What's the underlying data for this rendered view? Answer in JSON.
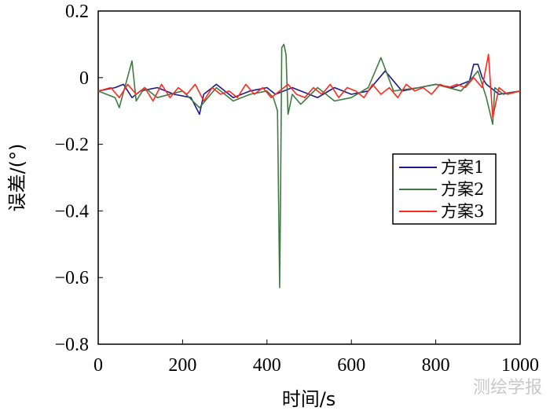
{
  "chart_data": {
    "type": "line",
    "xlabel": "时间/s",
    "ylabel": "误差/(°)",
    "xlim": [
      0,
      1000
    ],
    "ylim": [
      -0.8,
      0.2
    ],
    "xticks": [
      0,
      200,
      400,
      600,
      800,
      1000
    ],
    "yticks": [
      0.2,
      0,
      -0.2,
      -0.4,
      -0.6,
      -0.8
    ],
    "ytick_labels": [
      "0.2",
      "0",
      "−0.2",
      "−0.4",
      "−0.6",
      "−0.8"
    ],
    "grid": false,
    "legend_position": "right",
    "colors": {
      "方案1": "#1f1a8c",
      "方案2": "#3f7a45",
      "方案3": "#ff2a20"
    },
    "series": [
      {
        "name": "方案1",
        "x": [
          0,
          40,
          60,
          80,
          100,
          140,
          180,
          220,
          240,
          250,
          280,
          320,
          360,
          400,
          420,
          440,
          460,
          480,
          520,
          560,
          600,
          640,
          680,
          720,
          760,
          800,
          840,
          880,
          890,
          900,
          910,
          920,
          950,
          1000
        ],
        "y": [
          -0.04,
          -0.03,
          -0.02,
          -0.06,
          -0.04,
          -0.03,
          -0.05,
          -0.06,
          -0.11,
          -0.05,
          -0.02,
          -0.06,
          -0.04,
          -0.03,
          -0.05,
          -0.04,
          -0.03,
          -0.04,
          -0.06,
          -0.03,
          -0.05,
          -0.04,
          0.02,
          -0.04,
          -0.03,
          -0.02,
          -0.03,
          -0.01,
          0.04,
          0.04,
          0.0,
          -0.02,
          -0.05,
          -0.04
        ]
      },
      {
        "name": "方案2",
        "x": [
          0,
          40,
          50,
          80,
          90,
          110,
          140,
          200,
          240,
          280,
          320,
          360,
          400,
          415,
          425,
          430,
          432,
          435,
          440,
          445,
          450,
          460,
          480,
          520,
          560,
          600,
          640,
          670,
          700,
          760,
          800,
          860,
          900,
          920,
          935,
          940,
          960,
          1000
        ],
        "y": [
          -0.04,
          -0.06,
          -0.09,
          0.05,
          -0.07,
          -0.03,
          -0.06,
          -0.04,
          -0.09,
          -0.03,
          -0.07,
          -0.05,
          -0.04,
          -0.06,
          -0.1,
          -0.63,
          -0.37,
          0.09,
          0.1,
          0.07,
          -0.11,
          -0.05,
          -0.08,
          -0.03,
          -0.07,
          -0.06,
          -0.03,
          0.06,
          -0.04,
          -0.03,
          -0.02,
          -0.04,
          0.02,
          -0.06,
          -0.14,
          -0.03,
          -0.05,
          -0.04
        ]
      },
      {
        "name": "方案3",
        "x": [
          0,
          30,
          50,
          70,
          90,
          110,
          130,
          150,
          170,
          190,
          210,
          230,
          250,
          270,
          290,
          310,
          330,
          350,
          370,
          390,
          410,
          430,
          450,
          470,
          490,
          510,
          530,
          550,
          570,
          590,
          610,
          630,
          650,
          670,
          690,
          710,
          730,
          750,
          770,
          790,
          810,
          830,
          850,
          870,
          890,
          910,
          925,
          935,
          950,
          970,
          1000
        ],
        "y": [
          -0.04,
          -0.03,
          -0.06,
          -0.02,
          -0.05,
          -0.03,
          -0.07,
          -0.02,
          -0.06,
          -0.03,
          -0.05,
          -0.02,
          -0.07,
          -0.03,
          -0.05,
          -0.04,
          -0.06,
          -0.02,
          -0.05,
          -0.03,
          -0.06,
          -0.04,
          -0.02,
          -0.05,
          -0.06,
          -0.03,
          -0.05,
          -0.02,
          -0.06,
          -0.03,
          -0.04,
          -0.06,
          -0.02,
          -0.05,
          -0.03,
          -0.06,
          -0.02,
          -0.04,
          -0.03,
          -0.05,
          -0.02,
          -0.03,
          -0.02,
          -0.03,
          0.0,
          -0.03,
          0.07,
          -0.12,
          -0.03,
          -0.05,
          -0.04
        ]
      }
    ]
  },
  "watermark": "测绘学报"
}
